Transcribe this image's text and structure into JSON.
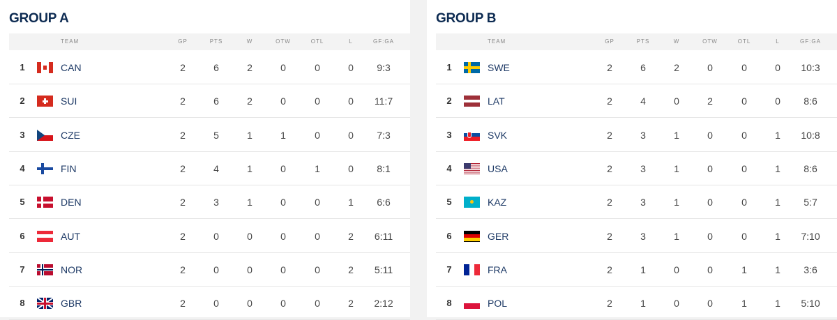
{
  "columns": {
    "team": "TEAM",
    "gp": "GP",
    "pts": "PTS",
    "w": "W",
    "otw": "OTW",
    "otl": "OTL",
    "l": "L",
    "gfga": "GF:GA"
  },
  "groups": [
    {
      "title": "GROUP A",
      "rows": [
        {
          "rank": "1",
          "team": "CAN",
          "flag": "canada-flag",
          "gp": "2",
          "pts": "6",
          "w": "2",
          "otw": "0",
          "otl": "0",
          "l": "0",
          "gfga": "9:3"
        },
        {
          "rank": "2",
          "team": "SUI",
          "flag": "switzerland-flag",
          "gp": "2",
          "pts": "6",
          "w": "2",
          "otw": "0",
          "otl": "0",
          "l": "0",
          "gfga": "11:7"
        },
        {
          "rank": "3",
          "team": "CZE",
          "flag": "czechia-flag",
          "gp": "2",
          "pts": "5",
          "w": "1",
          "otw": "1",
          "otl": "0",
          "l": "0",
          "gfga": "7:3"
        },
        {
          "rank": "4",
          "team": "FIN",
          "flag": "finland-flag",
          "gp": "2",
          "pts": "4",
          "w": "1",
          "otw": "0",
          "otl": "1",
          "l": "0",
          "gfga": "8:1"
        },
        {
          "rank": "5",
          "team": "DEN",
          "flag": "denmark-flag",
          "gp": "2",
          "pts": "3",
          "w": "1",
          "otw": "0",
          "otl": "0",
          "l": "1",
          "gfga": "6:6"
        },
        {
          "rank": "6",
          "team": "AUT",
          "flag": "austria-flag",
          "gp": "2",
          "pts": "0",
          "w": "0",
          "otw": "0",
          "otl": "0",
          "l": "2",
          "gfga": "6:11"
        },
        {
          "rank": "7",
          "team": "NOR",
          "flag": "norway-flag",
          "gp": "2",
          "pts": "0",
          "w": "0",
          "otw": "0",
          "otl": "0",
          "l": "2",
          "gfga": "5:11"
        },
        {
          "rank": "8",
          "team": "GBR",
          "flag": "uk-flag",
          "gp": "2",
          "pts": "0",
          "w": "0",
          "otw": "0",
          "otl": "0",
          "l": "2",
          "gfga": "2:12"
        }
      ]
    },
    {
      "title": "GROUP B",
      "rows": [
        {
          "rank": "1",
          "team": "SWE",
          "flag": "sweden-flag",
          "gp": "2",
          "pts": "6",
          "w": "2",
          "otw": "0",
          "otl": "0",
          "l": "0",
          "gfga": "10:3"
        },
        {
          "rank": "2",
          "team": "LAT",
          "flag": "latvia-flag",
          "gp": "2",
          "pts": "4",
          "w": "0",
          "otw": "2",
          "otl": "0",
          "l": "0",
          "gfga": "8:6"
        },
        {
          "rank": "3",
          "team": "SVK",
          "flag": "slovakia-flag",
          "gp": "2",
          "pts": "3",
          "w": "1",
          "otw": "0",
          "otl": "0",
          "l": "1",
          "gfga": "10:8"
        },
        {
          "rank": "4",
          "team": "USA",
          "flag": "usa-flag",
          "gp": "2",
          "pts": "3",
          "w": "1",
          "otw": "0",
          "otl": "0",
          "l": "1",
          "gfga": "8:6"
        },
        {
          "rank": "5",
          "team": "KAZ",
          "flag": "kazakhstan-flag",
          "gp": "2",
          "pts": "3",
          "w": "1",
          "otw": "0",
          "otl": "0",
          "l": "1",
          "gfga": "5:7"
        },
        {
          "rank": "6",
          "team": "GER",
          "flag": "germany-flag",
          "gp": "2",
          "pts": "3",
          "w": "1",
          "otw": "0",
          "otl": "0",
          "l": "1",
          "gfga": "7:10"
        },
        {
          "rank": "7",
          "team": "FRA",
          "flag": "france-flag",
          "gp": "2",
          "pts": "1",
          "w": "0",
          "otw": "0",
          "otl": "1",
          "l": "1",
          "gfga": "3:6"
        },
        {
          "rank": "8",
          "team": "POL",
          "flag": "poland-flag",
          "gp": "2",
          "pts": "1",
          "w": "0",
          "otw": "0",
          "otl": "1",
          "l": "1",
          "gfga": "5:10"
        }
      ]
    }
  ]
}
